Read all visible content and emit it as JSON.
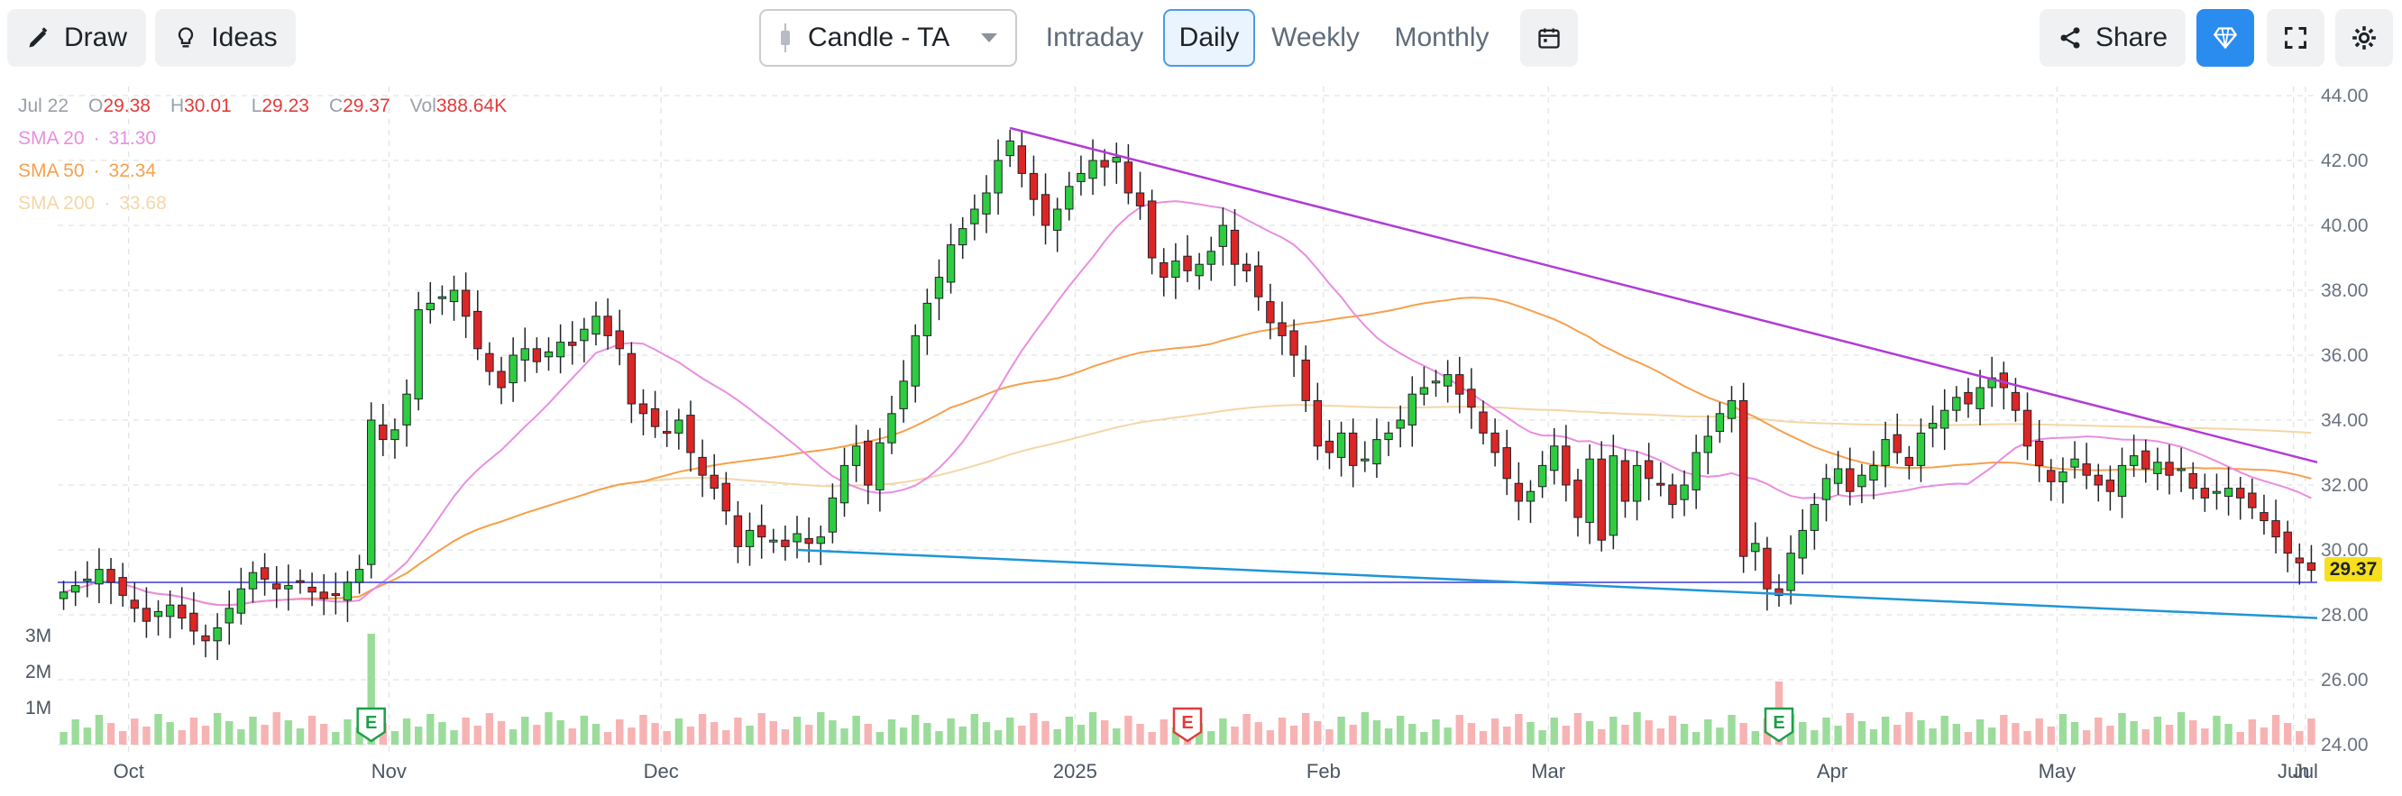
{
  "toolbar": {
    "draw": "Draw",
    "ideas": "Ideas",
    "chart_type": "Candle - TA",
    "tabs": [
      "Intraday",
      "Daily",
      "Weekly",
      "Monthly"
    ],
    "active_tab": "Daily",
    "share": "Share"
  },
  "ohlc": {
    "date": "Jul 22",
    "o_label": "O",
    "o": "29.38",
    "h_label": "H",
    "h": "30.01",
    "l_label": "L",
    "l": "29.23",
    "c_label": "C",
    "c": "29.37",
    "vol_label": "Vol",
    "vol": "388.64K"
  },
  "sma": [
    {
      "label": "SMA 20",
      "value": "31.30",
      "color": "#e98ee0"
    },
    {
      "label": "SMA 50",
      "value": "32.34",
      "color": "#f6a04d"
    },
    {
      "label": "SMA 200",
      "value": "33.68",
      "color": "#f4d6a6"
    }
  ],
  "last_price": "29.37",
  "colors": {
    "up": "#2ecc40",
    "down": "#dc2626",
    "vol_up": "#9bdc9b",
    "vol_down": "#f7b3b3",
    "trend_upper": "#b13bd6",
    "trend_lower": "#1e95d8",
    "hline": "#6b6be0",
    "earnings": "#1e9e4a",
    "earnings_down": "#e23b3b"
  },
  "chart_data": {
    "type": "candlestick",
    "ylim": [
      24,
      44
    ],
    "y_ticks": [
      "44.00",
      "42.00",
      "40.00",
      "38.00",
      "36.00",
      "34.00",
      "32.00",
      "30.00",
      "28.00",
      "26.00",
      "24.00"
    ],
    "x_labels": [
      "Oct",
      "Nov",
      "Dec",
      "2025",
      "Feb",
      "Mar",
      "Apr",
      "May",
      "Jun",
      "Jul"
    ],
    "volume_ticks": [
      "3M",
      "2M",
      "1M"
    ],
    "earnings_markers": [
      {
        "label": "E",
        "date": "Oct 30",
        "kind": "up"
      },
      {
        "label": "E",
        "date": "Feb 6",
        "kind": "down"
      },
      {
        "label": "E",
        "date": "May 1",
        "kind": "up"
      }
    ],
    "horizontal_line": 29.0,
    "trend_upper": {
      "from": [
        "Jan 28",
        43.0
      ],
      "to": [
        "Jul 22",
        32.7
      ]
    },
    "trend_lower": {
      "from": [
        "Dec 18",
        30.0
      ],
      "to": [
        "Jul 22",
        27.9
      ]
    },
    "closes": [
      28.7,
      28.9,
      29.1,
      29.4,
      29.0,
      28.6,
      28.2,
      27.8,
      28.1,
      28.3,
      27.9,
      27.5,
      27.2,
      27.6,
      28.2,
      28.8,
      29.3,
      29.1,
      28.8,
      28.9,
      29.0,
      28.7,
      28.5,
      28.6,
      29.0,
      29.4,
      34.0,
      33.4,
      33.7,
      34.8,
      37.4,
      37.6,
      37.8,
      38.0,
      37.2,
      36.2,
      35.5,
      35.0,
      36.0,
      36.2,
      35.8,
      36.1,
      36.4,
      36.3,
      36.8,
      37.2,
      36.6,
      36.2,
      34.5,
      34.2,
      33.8,
      33.6,
      34.0,
      33.0,
      32.3,
      31.9,
      31.2,
      30.1,
      30.6,
      30.4,
      30.3,
      30.1,
      30.5,
      30.2,
      30.4,
      31.6,
      32.6,
      33.2,
      32.0,
      33.3,
      34.2,
      35.2,
      36.6,
      37.6,
      38.4,
      39.4,
      39.9,
      40.5,
      41.0,
      42.0,
      42.6,
      41.6,
      40.8,
      40.0,
      40.5,
      41.2,
      41.6,
      42.0,
      41.8,
      42.1,
      41.0,
      40.6,
      39.0,
      38.4,
      38.9,
      38.6,
      38.8,
      39.2,
      40.0,
      38.8,
      38.6,
      37.8,
      37.0,
      36.6,
      36.0,
      34.6,
      33.2,
      33.0,
      33.6,
      32.6,
      32.8,
      33.4,
      33.6,
      34.0,
      34.8,
      35.0,
      35.2,
      35.4,
      34.8,
      34.4,
      33.6,
      33.0,
      32.2,
      31.5,
      31.8,
      32.6,
      33.2,
      32.0,
      31.0,
      32.8,
      30.3,
      32.9,
      31.5,
      32.6,
      32.2,
      32.0,
      31.4,
      32.0,
      33.0,
      33.5,
      34.2,
      34.6,
      29.8,
      30.2,
      28.8,
      28.6,
      29.9,
      30.6,
      31.4,
      32.2,
      32.5,
      31.8,
      32.3,
      32.6,
      33.4,
      33.0,
      32.6,
      33.6,
      33.9,
      34.3,
      34.7,
      34.5,
      35.0,
      35.3,
      35.0,
      34.3,
      33.2,
      32.6,
      32.1,
      32.4,
      32.8,
      32.3,
      32.0,
      31.8,
      32.6,
      32.9,
      32.5,
      32.7,
      32.3,
      32.5,
      31.9,
      31.6,
      31.8,
      31.9,
      31.6,
      31.3,
      30.9,
      30.4,
      29.9,
      29.6,
      29.37
    ]
  }
}
